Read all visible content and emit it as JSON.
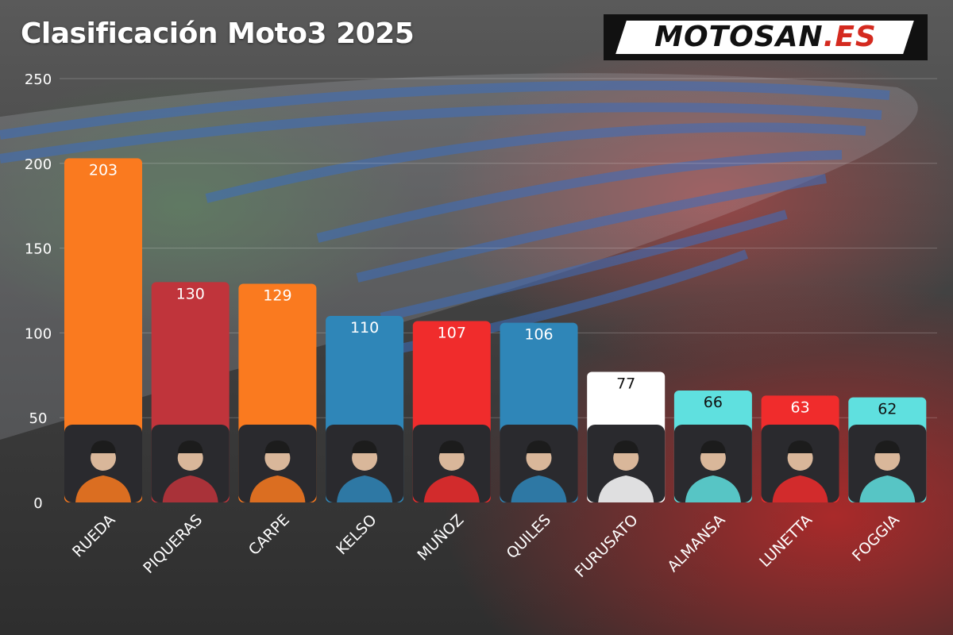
{
  "title": "Clasificación Moto3 2025",
  "logo": {
    "part1": "MOTOSAN",
    "part2": ".ES"
  },
  "colors": {
    "orange": "#fa7a1f",
    "darkred": "#c0343b",
    "blue": "#2f86b8",
    "red": "#f02c2c",
    "white": "#ffffff",
    "cyan": "#5fe0df"
  },
  "chart_data": {
    "type": "bar",
    "title": "Clasificación Moto3 2025",
    "xlabel": "",
    "ylabel": "",
    "ylim": [
      0,
      250
    ],
    "yticks": [
      0,
      50,
      100,
      150,
      200,
      250
    ],
    "grid": true,
    "categories": [
      "RUEDA",
      "PIQUERAS",
      "CARPE",
      "KELSO",
      "MUÑOZ",
      "QUILES",
      "FURUSATO",
      "ALMANSA",
      "LUNETTA",
      "FOGGIA"
    ],
    "values": [
      203,
      130,
      129,
      110,
      107,
      106,
      77,
      66,
      63,
      62
    ],
    "bar_colors": [
      "#fa7a1f",
      "#c0343b",
      "#fa7a1f",
      "#2f86b8",
      "#f02c2c",
      "#2f86b8",
      "#ffffff",
      "#5fe0df",
      "#f02c2c",
      "#5fe0df"
    ],
    "label_colors": [
      "#ffffff",
      "#ffffff",
      "#ffffff",
      "#ffffff",
      "#ffffff",
      "#ffffff",
      "#111111",
      "#111111",
      "#ffffff",
      "#111111"
    ]
  }
}
